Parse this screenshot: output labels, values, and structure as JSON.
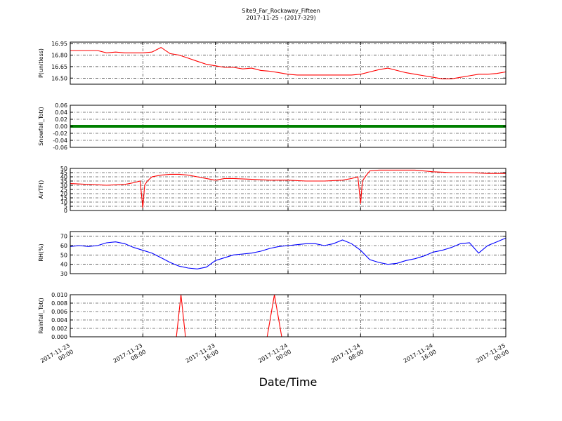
{
  "figure": {
    "title": "Site9_Far_Rockaway_Fifteen",
    "subtitle": "2017-11-25 - (2017-329)",
    "xlabel": "Date/Time"
  },
  "chart_data": [
    {
      "type": "line",
      "ylabel": "P(unitless)",
      "color": "#ff0000",
      "x_range": [
        "2017-11-23 00:00",
        "2017-11-25 00:00"
      ],
      "ylim": [
        16.42,
        16.97
      ],
      "yticks": [
        16.5,
        16.65,
        16.8,
        16.95
      ],
      "ytick_labels": [
        "16.50",
        "16.65",
        "16.80",
        "16.95"
      ],
      "x_hours": [
        0,
        1,
        2,
        3,
        4,
        5,
        6,
        7,
        8,
        9,
        10,
        11,
        12,
        13,
        14,
        15,
        16,
        17,
        18,
        19,
        20,
        21,
        22,
        23,
        24,
        25,
        26,
        27,
        28,
        29,
        30,
        31,
        32,
        33,
        34,
        35,
        36,
        37,
        38,
        39,
        40,
        41,
        42,
        43,
        44,
        45,
        46,
        47,
        48
      ],
      "values": [
        16.86,
        16.86,
        16.86,
        16.86,
        16.83,
        16.84,
        16.83,
        16.83,
        16.83,
        16.84,
        16.9,
        16.82,
        16.8,
        16.76,
        16.72,
        16.68,
        16.66,
        16.64,
        16.64,
        16.62,
        16.63,
        16.6,
        16.59,
        16.57,
        16.55,
        16.54,
        16.54,
        16.54,
        16.54,
        16.54,
        16.54,
        16.54,
        16.55,
        16.58,
        16.61,
        16.63,
        16.6,
        16.57,
        16.55,
        16.53,
        16.51,
        16.49,
        16.49,
        16.51,
        16.53,
        16.55,
        16.55,
        16.56,
        16.58
      ],
      "grid": true
    },
    {
      "type": "line",
      "ylabel": "Snowfall_Tot()",
      "color": "#008000",
      "x_range": [
        "2017-11-23 00:00",
        "2017-11-25 00:00"
      ],
      "ylim": [
        -0.06,
        0.06
      ],
      "yticks": [
        -0.06,
        -0.04,
        -0.02,
        0.0,
        0.02,
        0.04,
        0.06
      ],
      "ytick_labels": [
        "-0.06",
        "-0.04",
        "-0.02",
        "0.00",
        "0.02",
        "0.04",
        "0.06"
      ],
      "x_hours": [
        0,
        48
      ],
      "values": [
        0.0,
        0.0
      ],
      "grid": true
    },
    {
      "type": "line",
      "ylabel": "AirTF()",
      "color": "#ff0000",
      "x_range": [
        "2017-11-23 00:00",
        "2017-11-25 00:00"
      ],
      "ylim": [
        0,
        50
      ],
      "yticks": [
        0,
        5,
        10,
        15,
        20,
        25,
        30,
        35,
        40,
        45,
        50
      ],
      "ytick_labels": [
        "0",
        "5",
        "10",
        "15",
        "20",
        "25",
        "30",
        "35",
        "40",
        "45",
        "50"
      ],
      "x_hours": [
        0,
        2,
        4,
        6,
        7,
        7.7,
        8,
        8.2,
        8.5,
        9,
        10,
        11,
        12,
        13,
        14,
        15,
        16,
        17,
        18,
        20,
        22,
        24,
        26,
        28,
        30,
        31,
        31.7,
        32,
        32.2,
        32.5,
        33,
        34,
        36,
        38,
        40,
        42,
        44,
        46,
        48
      ],
      "values": [
        32,
        31,
        30,
        31,
        33,
        35,
        3,
        30,
        35,
        40,
        42,
        43,
        43,
        42,
        40,
        38,
        36,
        38,
        38,
        37,
        36,
        36,
        35,
        35,
        36,
        38,
        40,
        8,
        35,
        40,
        47,
        48,
        48,
        48,
        46,
        45,
        45,
        44,
        44
      ],
      "grid": true
    },
    {
      "type": "line",
      "ylabel": "RH(%)",
      "color": "#0000ff",
      "x_range": [
        "2017-11-23 00:00",
        "2017-11-25 00:00"
      ],
      "ylim": [
        30,
        75
      ],
      "yticks": [
        30,
        40,
        50,
        60,
        70
      ],
      "ytick_labels": [
        "30",
        "40",
        "50",
        "60",
        "70"
      ],
      "x_hours": [
        0,
        1,
        2,
        3,
        4,
        5,
        6,
        7,
        8,
        9,
        10,
        11,
        12,
        13,
        14,
        15,
        16,
        17,
        18,
        19,
        20,
        21,
        22,
        23,
        24,
        25,
        26,
        27,
        28,
        29,
        30,
        31,
        32,
        33,
        34,
        35,
        36,
        37,
        38,
        39,
        40,
        41,
        42,
        43,
        44,
        45,
        46,
        47,
        48
      ],
      "values": [
        59,
        60,
        59,
        60,
        63,
        64,
        62,
        58,
        55,
        52,
        47,
        42,
        38,
        36,
        35,
        37,
        44,
        47,
        50,
        51,
        52,
        54,
        57,
        59,
        60,
        61,
        62,
        62,
        60,
        62,
        66,
        62,
        55,
        45,
        42,
        40,
        41,
        44,
        46,
        49,
        53,
        55,
        58,
        62,
        63,
        52,
        60,
        64,
        68
      ],
      "grid": true
    },
    {
      "type": "line",
      "ylabel": "Rainfall_Tot()",
      "color": "#ff0000",
      "x_range": [
        "2017-11-23 00:00",
        "2017-11-25 00:00"
      ],
      "ylim": [
        0.0,
        0.01
      ],
      "yticks": [
        0.0,
        0.002,
        0.004,
        0.006,
        0.008,
        0.01
      ],
      "ytick_labels": [
        "0.000",
        "0.002",
        "0.004",
        "0.006",
        "0.008",
        "0.010"
      ],
      "x_hours": [
        0,
        11.7,
        12.2,
        12.7,
        21.7,
        22.5,
        23.3,
        48
      ],
      "values": [
        0.0,
        0.0,
        0.01,
        0.0,
        0.0,
        0.01,
        0.0,
        0.0
      ],
      "grid": true
    }
  ],
  "x_axis": {
    "hours_min": 0,
    "hours_max": 48,
    "ticks": [
      {
        "hour": 0,
        "line1": "2017-11-23",
        "line2": "00:00"
      },
      {
        "hour": 8,
        "line1": "2017-11-23",
        "line2": "08:00"
      },
      {
        "hour": 16,
        "line1": "2017-11-23",
        "line2": "16:00"
      },
      {
        "hour": 24,
        "line1": "2017-11-24",
        "line2": "00:00"
      },
      {
        "hour": 32,
        "line1": "2017-11-24",
        "line2": "08:00"
      },
      {
        "hour": 40,
        "line1": "2017-11-24",
        "line2": "16:00"
      },
      {
        "hour": 48,
        "line1": "2017-11-25",
        "line2": "00:00"
      }
    ]
  }
}
